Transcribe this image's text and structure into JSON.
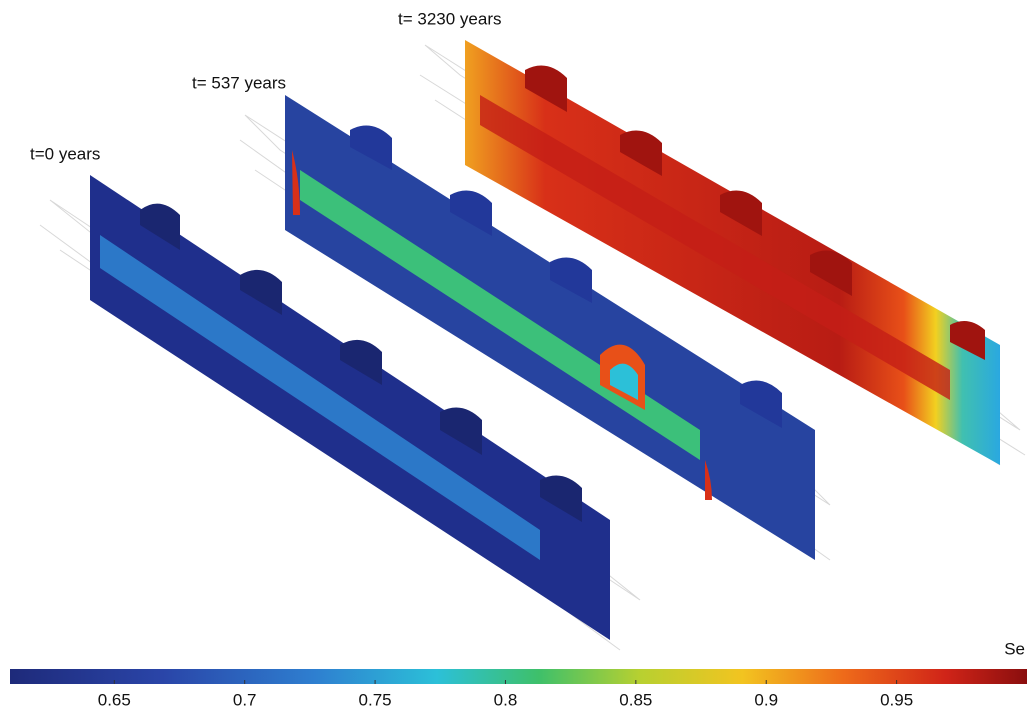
{
  "labels": [
    "t=0 years",
    "t= 537 years",
    "t= 3230 years"
  ],
  "colorbar": {
    "title": "Se",
    "lim": [
      0.61,
      1.0
    ],
    "ticks": [
      0.65,
      0.7,
      0.75,
      0.8,
      0.85,
      0.9,
      0.95
    ]
  }
}
